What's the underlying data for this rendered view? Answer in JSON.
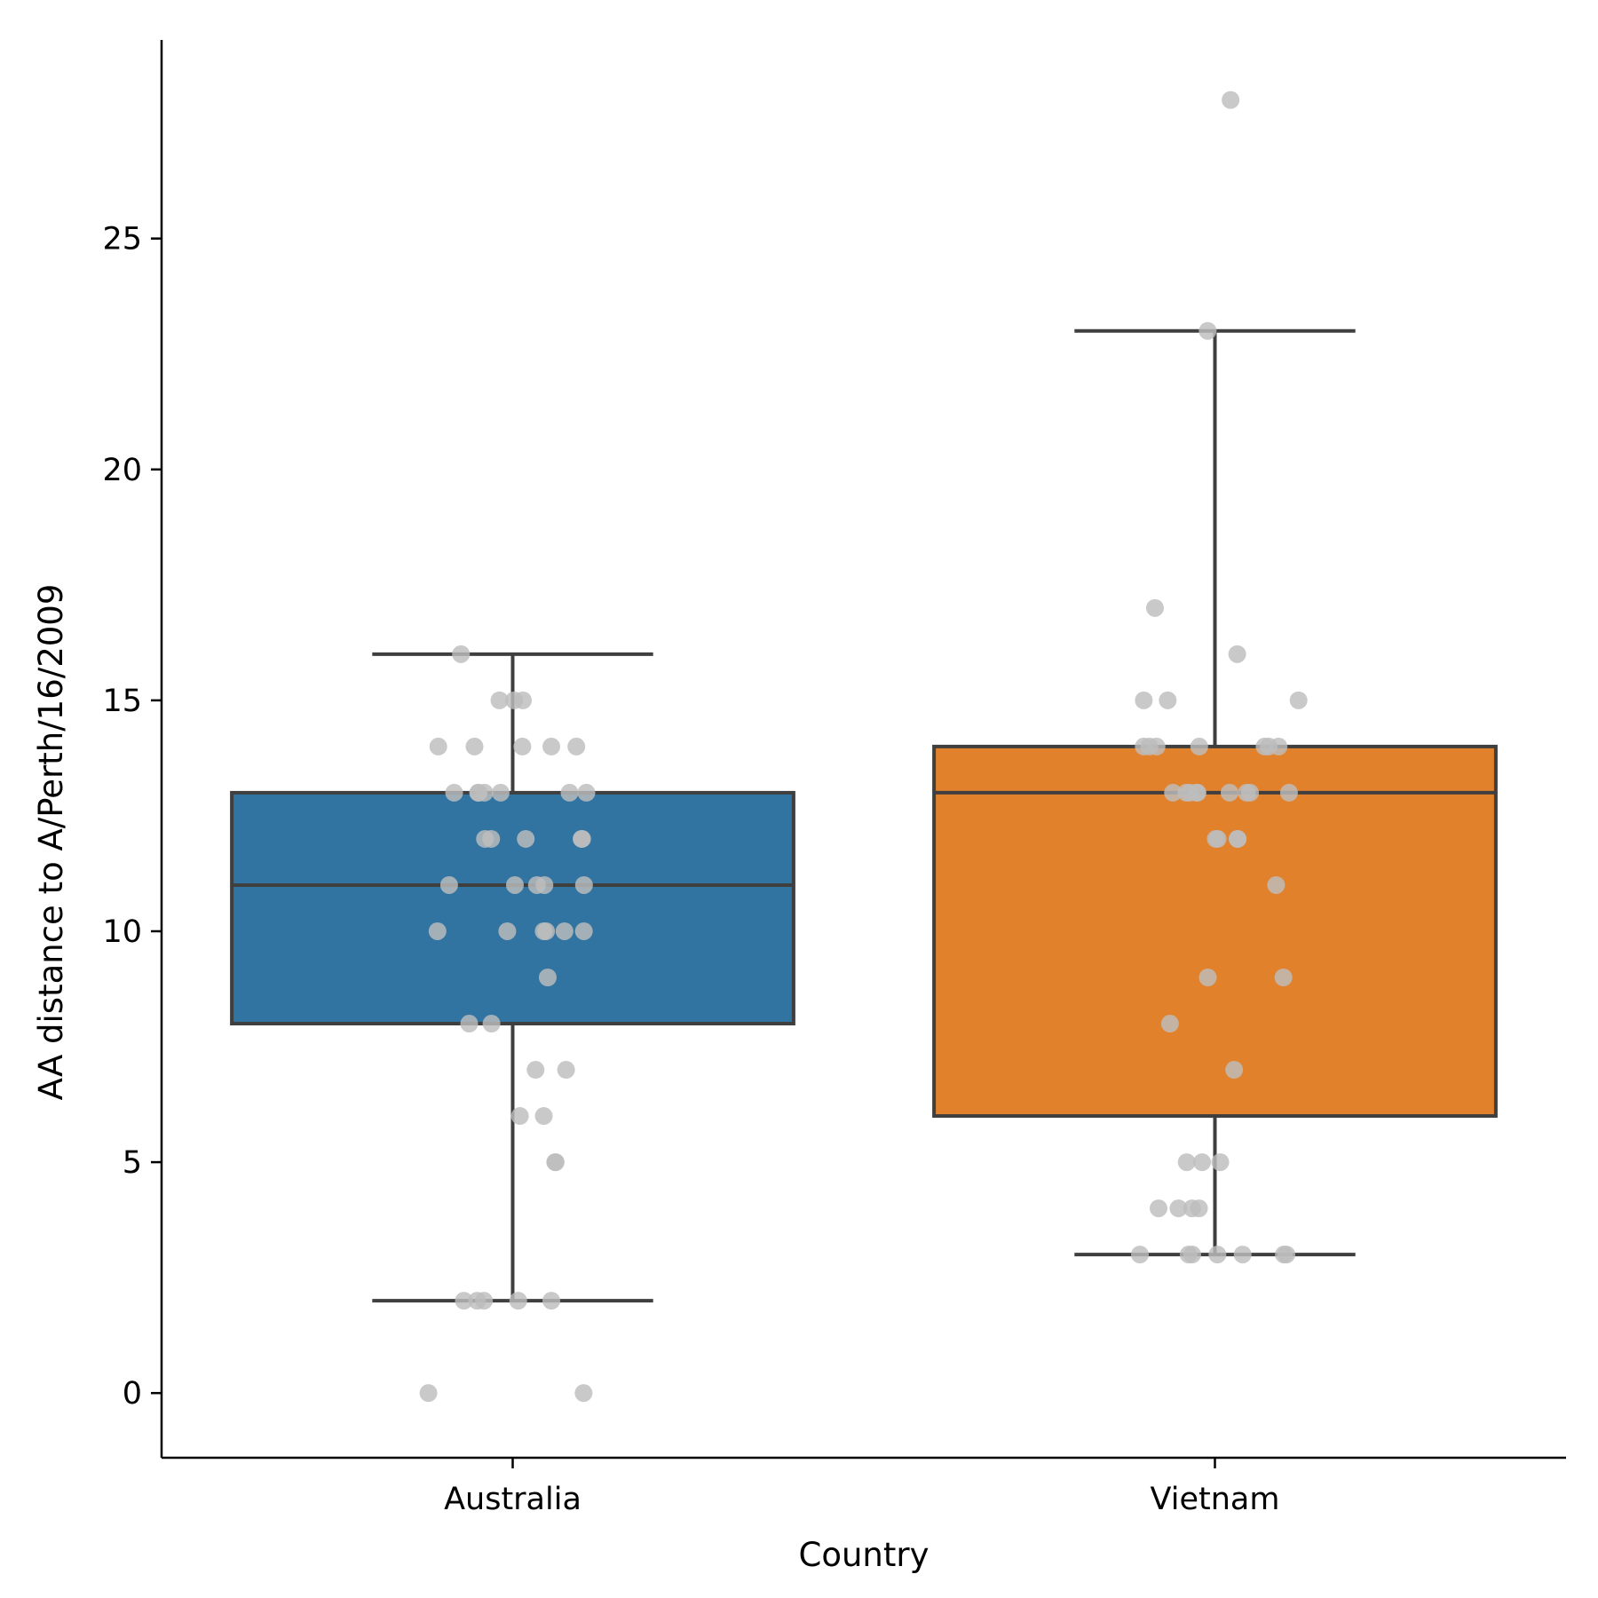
{
  "chart_data": {
    "type": "box",
    "xlabel": "Country",
    "ylabel": "AA distance to A/Perth/16/2009",
    "ylim": [
      -1.4,
      29.3
    ],
    "yticks": [
      0,
      5,
      10,
      15,
      20,
      25
    ],
    "grid": false,
    "categories": [
      "Australia",
      "Vietnam"
    ],
    "box_stats": [
      {
        "category": "Australia",
        "whisker_low": 2,
        "q1": 8,
        "median": 11,
        "q3": 13,
        "whisker_high": 16
      },
      {
        "category": "Vietnam",
        "whisker_low": 3,
        "q1": 6,
        "median": 13,
        "q3": 14,
        "whisker_high": 23
      }
    ],
    "points": [
      {
        "category": "Australia",
        "values": [
          0,
          0,
          2,
          2,
          2,
          2,
          2,
          5,
          5,
          6,
          6,
          7,
          7,
          8,
          8,
          9,
          10,
          10,
          10,
          10,
          10,
          10,
          11,
          11,
          11,
          11,
          11,
          12,
          12,
          12,
          12,
          12,
          13,
          13,
          13,
          13,
          13,
          13,
          13,
          14,
          14,
          14,
          14,
          14,
          15,
          15,
          15,
          16
        ]
      },
      {
        "category": "Vietnam",
        "values": [
          3,
          3,
          3,
          3,
          3,
          3,
          3,
          4,
          4,
          4,
          4,
          5,
          5,
          5,
          7,
          8,
          9,
          9,
          11,
          12,
          12,
          12,
          12,
          13,
          13,
          13,
          13,
          13,
          13,
          13,
          13,
          13,
          14,
          14,
          14,
          14,
          14,
          14,
          14,
          15,
          15,
          15,
          16,
          17,
          23,
          28
        ]
      }
    ],
    "colors": {
      "Australia": "#3274a1",
      "Vietnam": "#e1812c",
      "box_edge": "#3f3f3f",
      "points": "#bdbdbd"
    }
  }
}
